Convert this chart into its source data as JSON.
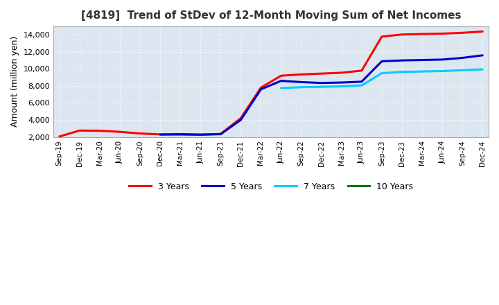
{
  "title": "[4819]  Trend of StDev of 12-Month Moving Sum of Net Incomes",
  "ylabel": "Amount (million yen)",
  "plot_bg_color": "#dce6f0",
  "fig_bg_color": "#ffffff",
  "grid_color": "#ffffff",
  "ylim": [
    2000,
    15000
  ],
  "yticks": [
    2000,
    4000,
    6000,
    8000,
    10000,
    12000,
    14000
  ],
  "x_labels": [
    "Sep-19",
    "Dec-19",
    "Mar-20",
    "Jun-20",
    "Sep-20",
    "Dec-20",
    "Mar-21",
    "Jun-21",
    "Sep-21",
    "Dec-21",
    "Mar-22",
    "Jun-22",
    "Sep-22",
    "Dec-22",
    "Mar-23",
    "Jun-23",
    "Sep-23",
    "Dec-23",
    "Mar-24",
    "Jun-24",
    "Sep-24",
    "Dec-24"
  ],
  "series": {
    "3 Years": {
      "color": "#ff0000",
      "linewidth": 2.2,
      "values": [
        2050,
        2750,
        2720,
        2600,
        2400,
        2300,
        2280,
        2250,
        2350,
        4200,
        7800,
        9200,
        9350,
        9450,
        9550,
        9800,
        13800,
        14050,
        14100,
        14150,
        14250,
        14400
      ]
    },
    "5 Years": {
      "color": "#0000cc",
      "linewidth": 2.2,
      "values": [
        null,
        null,
        null,
        null,
        null,
        2280,
        2320,
        2280,
        2320,
        4000,
        7600,
        8600,
        8450,
        8350,
        8400,
        8500,
        10900,
        11000,
        11050,
        11100,
        11300,
        11600
      ]
    },
    "7 Years": {
      "color": "#00ccff",
      "linewidth": 2.2,
      "values": [
        null,
        null,
        null,
        null,
        null,
        null,
        null,
        null,
        null,
        null,
        null,
        7750,
        7850,
        7900,
        7950,
        8050,
        9500,
        9650,
        9700,
        9750,
        9850,
        9950
      ]
    },
    "10 Years": {
      "color": "#007700",
      "linewidth": 2.2,
      "values": [
        null,
        null,
        null,
        null,
        null,
        null,
        null,
        null,
        null,
        null,
        null,
        null,
        null,
        null,
        null,
        null,
        null,
        null,
        null,
        null,
        null,
        null
      ]
    }
  },
  "legend_labels": [
    "3 Years",
    "5 Years",
    "7 Years",
    "10 Years"
  ],
  "legend_colors": [
    "#ff0000",
    "#0000cc",
    "#00ccff",
    "#007700"
  ]
}
